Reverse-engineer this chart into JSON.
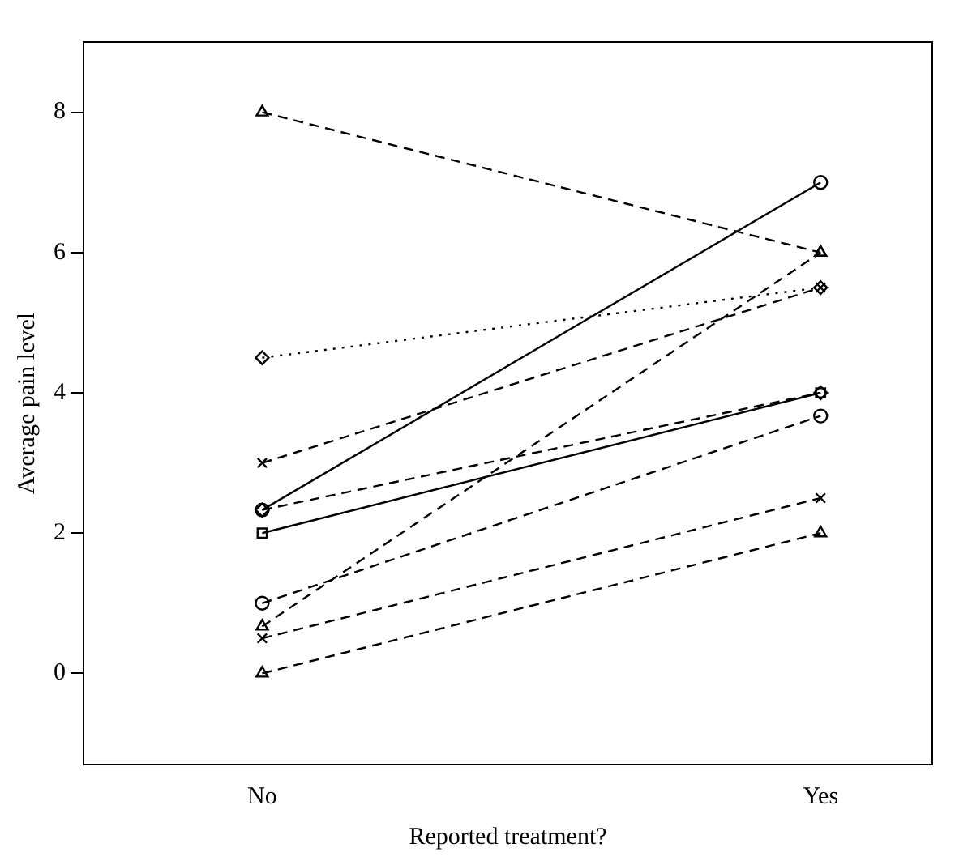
{
  "chart_data": {
    "type": "line",
    "xlabel": "Reported treatment?",
    "ylabel": "Average pain level",
    "categories": [
      "No",
      "Yes"
    ],
    "ylim": [
      -1.3,
      9.0
    ],
    "yticks": [
      0,
      2,
      4,
      6,
      8
    ],
    "grid": false,
    "legend": false,
    "series": [
      {
        "color": "#000000",
        "values": [
          8,
          6
        ],
        "marker": "triangle",
        "line_style": "dashed"
      },
      {
        "color": "#000000",
        "values": [
          4.5,
          5.5
        ],
        "marker": "diamond",
        "line_style": "dotted"
      },
      {
        "color": "#000000",
        "values": [
          3,
          5.5
        ],
        "marker": "cross",
        "line_style": "dashed"
      },
      {
        "color": "#000000",
        "values": [
          2.33,
          7
        ],
        "marker": "circle",
        "line_style": "solid"
      },
      {
        "color": "#000000",
        "values": [
          2.33,
          4
        ],
        "marker": "diamond",
        "line_style": "dashed"
      },
      {
        "color": "#000000",
        "values": [
          2,
          4
        ],
        "marker": "square",
        "line_style": "solid"
      },
      {
        "color": "#000000",
        "values": [
          1,
          3.67
        ],
        "marker": "circle",
        "line_style": "dashed"
      },
      {
        "color": "#000000",
        "values": [
          0.67,
          6
        ],
        "marker": "triangle",
        "line_style": "dashed"
      },
      {
        "color": "#000000",
        "values": [
          0.5,
          2.5
        ],
        "marker": "cross",
        "line_style": "dashed"
      },
      {
        "color": "#000000",
        "values": [
          0,
          2
        ],
        "marker": "triangle",
        "line_style": "dashed"
      }
    ]
  }
}
